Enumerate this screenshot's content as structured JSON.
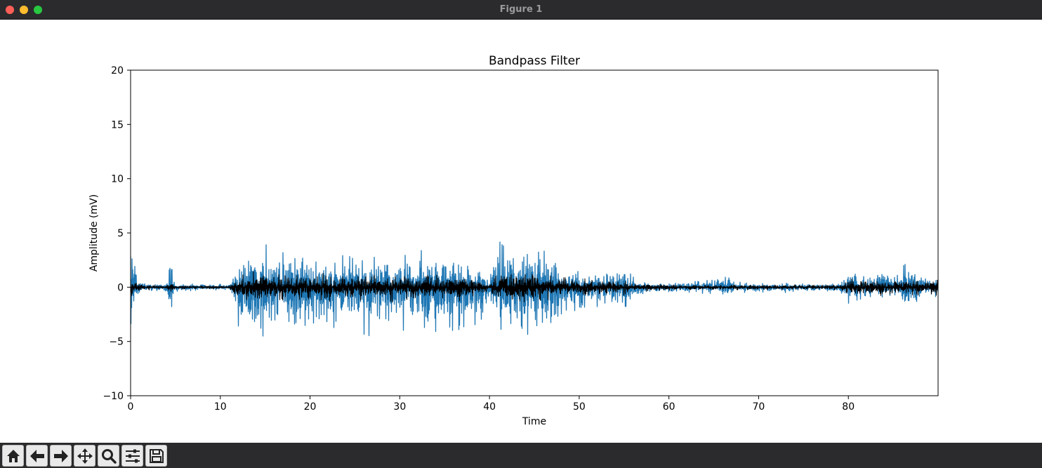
{
  "window": {
    "title": "Figure 1"
  },
  "toolbar": {
    "buttons": [
      {
        "icon": "home-icon"
      },
      {
        "icon": "back-arrow-icon"
      },
      {
        "icon": "forward-arrow-icon"
      },
      {
        "icon": "pan-move-icon"
      },
      {
        "icon": "zoom-magnifier-icon"
      },
      {
        "icon": "subplots-config-icon"
      },
      {
        "icon": "save-disk-icon"
      }
    ]
  },
  "chart_data": {
    "type": "line",
    "title": "Bandpass Filter",
    "xlabel": "Time",
    "ylabel": "Amplitude (mV)",
    "xlim": [
      0,
      90
    ],
    "ylim": [
      -10,
      20
    ],
    "xticks": [
      0,
      10,
      20,
      30,
      40,
      50,
      60,
      70,
      80
    ],
    "yticks": [
      -10,
      -5,
      0,
      5,
      10,
      15,
      20
    ],
    "xtick_labels": [
      "0",
      "10",
      "20",
      "30",
      "40",
      "50",
      "60",
      "70",
      "80"
    ],
    "ytick_labels": [
      "−10",
      "−5",
      "0",
      "5",
      "10",
      "15",
      "20"
    ],
    "grid": false,
    "series": [
      {
        "color": "#1f77b4",
        "envelope": {
          "x": [
            0,
            0.3,
            0.6,
            1,
            2,
            4,
            4.5,
            4.7,
            5,
            8,
            11,
            12,
            14,
            16,
            20,
            22,
            25,
            28,
            30,
            32,
            35,
            38,
            39,
            40,
            41,
            43,
            44,
            45,
            47,
            48,
            50,
            53,
            55,
            56,
            57,
            60,
            63,
            67,
            67.5,
            70,
            75,
            79,
            80,
            82,
            85,
            87,
            88,
            90
          ],
          "upper": [
            6.9,
            4.0,
            2.0,
            0.6,
            0.4,
            0.4,
            4.3,
            1.0,
            0.4,
            0.3,
            0.3,
            2.5,
            5.1,
            3.5,
            3.0,
            3.6,
            3.2,
            3.0,
            2.8,
            3.4,
            3.4,
            2.5,
            1.5,
            1.2,
            4.5,
            3.5,
            5.1,
            3.5,
            3.6,
            1.9,
            1.5,
            1.6,
            1.8,
            1.0,
            0.5,
            0.4,
            0.6,
            1.2,
            0.5,
            0.4,
            0.4,
            0.4,
            1.8,
            1.5,
            1.5,
            2.8,
            1.6,
            1.2
          ],
          "lower": [
            -5.5,
            -3.0,
            -1.2,
            -0.6,
            -0.4,
            -0.5,
            -4.4,
            -1.0,
            -0.5,
            -0.3,
            -0.3,
            -4.2,
            -5.3,
            -4.8,
            -4.5,
            -4.2,
            -4.5,
            -4.8,
            -4.4,
            -4.5,
            -4.6,
            -3.5,
            -3.8,
            -1.8,
            -4.5,
            -5.0,
            -6.4,
            -5.2,
            -5.2,
            -2.8,
            -2.0,
            -2.0,
            -2.0,
            -1.5,
            -0.7,
            -0.6,
            -0.6,
            -0.7,
            -0.5,
            -0.5,
            -0.5,
            -0.5,
            -1.5,
            -1.0,
            -1.0,
            -2.0,
            -1.5,
            -1.2
          ]
        }
      },
      {
        "color": "#000000",
        "envelope": {
          "x": [
            0,
            1,
            4,
            4.5,
            5,
            11,
            12,
            14,
            20,
            25,
            30,
            35,
            38,
            39,
            40,
            41,
            44,
            46,
            48,
            50,
            55,
            56,
            60,
            70,
            79,
            80,
            85,
            90
          ],
          "upper": [
            1.2,
            0.3,
            0.2,
            0.6,
            0.2,
            0.15,
            1.0,
            1.6,
            1.4,
            1.3,
            1.2,
            1.3,
            1.3,
            0.6,
            0.4,
            1.6,
            1.8,
            1.3,
            1.0,
            0.8,
            0.7,
            0.4,
            0.3,
            0.25,
            0.25,
            0.8,
            0.7,
            0.7
          ],
          "lower": [
            -1.0,
            -0.3,
            -0.2,
            -0.6,
            -0.2,
            -0.15,
            -1.3,
            -1.7,
            -1.5,
            -1.5,
            -1.4,
            -1.5,
            -1.3,
            -0.7,
            -0.4,
            -1.8,
            -2.0,
            -1.5,
            -1.0,
            -0.9,
            -0.8,
            -0.4,
            -0.3,
            -0.25,
            -0.25,
            -0.8,
            -0.8,
            -0.8
          ]
        }
      }
    ]
  }
}
